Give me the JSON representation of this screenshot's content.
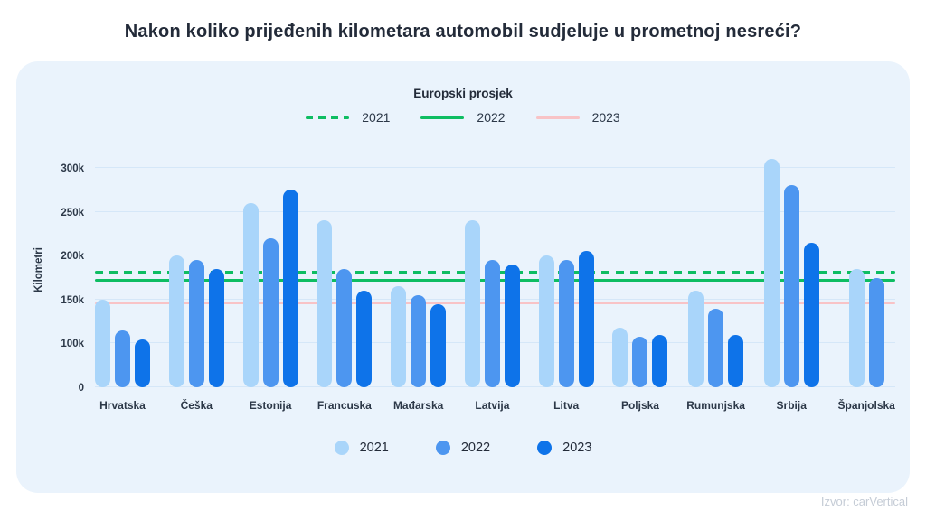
{
  "title": "Nakon koliko prijeđenih kilometara automobil sudjeluje u prometnoj nesreći?",
  "source": "Izvor: carVertical",
  "avg_legend": {
    "title": "Europski prosjek",
    "items": [
      {
        "label": "2021",
        "style": "dashed",
        "color": "#0ebd62",
        "value": 180
      },
      {
        "label": "2022",
        "style": "solid",
        "color": "#0ebd62",
        "value": 170
      },
      {
        "label": "2023",
        "style": "solid",
        "color": "#f8c3c6",
        "value": 145
      }
    ]
  },
  "bar_legend": [
    {
      "label": "2021",
      "color": "#a9d5fa"
    },
    {
      "label": "2022",
      "color": "#4d96f0"
    },
    {
      "label": "2023",
      "color": "#0e73e9"
    }
  ],
  "chart_data": {
    "type": "bar",
    "title": "Nakon koliko prijeđenih kilometara automobil sudjeluje u prometnoj nesreći?",
    "ylabel": "Kilometri",
    "unit": "thousand km",
    "categories": [
      "Hrvatska",
      "Češka",
      "Estonija",
      "Francuska",
      "Mađarska",
      "Latvija",
      "Litva",
      "Poljska",
      "Rumunjska",
      "Srbija",
      "Španjolska"
    ],
    "series": [
      {
        "name": "2021",
        "color": "#a9d5fa",
        "values": [
          150,
          200,
          260,
          240,
          165,
          240,
          200,
          118,
          160,
          310,
          185
        ]
      },
      {
        "name": "2022",
        "color": "#4d96f0",
        "values": [
          115,
          195,
          220,
          185,
          155,
          195,
          195,
          108,
          140,
          280,
          175
        ]
      },
      {
        "name": "2023",
        "color": "#0e73e9",
        "values": [
          105,
          185,
          275,
          160,
          145,
          190,
          205,
          110,
          110,
          215,
          null
        ]
      }
    ],
    "european_average": {
      "2021": 180,
      "2022": 170,
      "2023": 145
    },
    "yticks": {
      "labels": [
        "0",
        "100k",
        "150k",
        "200k",
        "250k",
        "300k"
      ],
      "values": [
        0,
        100,
        150,
        200,
        250,
        300
      ]
    },
    "axis_scale": "non-linear: 0-100k spans one gridline step, 50k per step above 100k",
    "grid": "horizontal",
    "legend_position": "bottom",
    "panel_color": "#eaf3fc",
    "gridline_color": "#d5e7f8"
  }
}
